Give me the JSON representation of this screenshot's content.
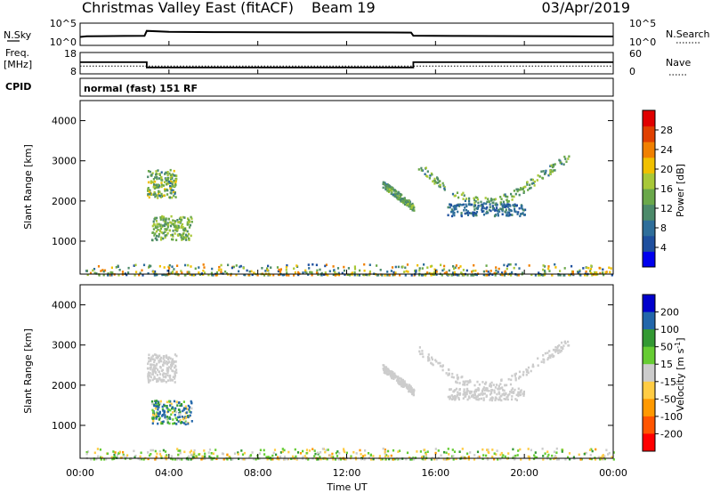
{
  "header": {
    "title": "Christmas Valley East (fitACF)",
    "beam": "Beam 19",
    "date": "03/Apr/2019"
  },
  "nsky_panel": {
    "left_label": "N.Sky",
    "left_ticks": [
      "10^5",
      "10^0"
    ],
    "right_label": "N.Search",
    "right_ticks": [
      "10^5",
      "10^0"
    ]
  },
  "freq_panel": {
    "left_label_1": "Freq.",
    "left_label_2": "[MHz]",
    "left_ticks": [
      "18",
      "8"
    ],
    "right_label": "Nave",
    "right_ticks": [
      "60",
      "0"
    ]
  },
  "cpid": {
    "label": "CPID",
    "text": "normal (fast) 151 RF"
  },
  "colors": {
    "power": [
      "#0000ee",
      "#1e4f9e",
      "#2e6e9a",
      "#4c8a6a",
      "#6aa84a",
      "#a8c838",
      "#f0c000",
      "#f08000",
      "#e04000",
      "#e00000"
    ],
    "velocity": [
      "#ff0000",
      "#ff5500",
      "#ff9900",
      "#ffcc44",
      "#cccccc",
      "#66cc33",
      "#339933",
      "#2266aa",
      "#0000cc"
    ]
  },
  "chart_data": [
    {
      "type": "line",
      "panel": "N.Sky / N.Search",
      "x_unit": "hours UT",
      "yscale": "log",
      "series": [
        {
          "x": [
            0.0,
            0.3,
            1.0,
            2.0,
            2.9,
            3.0,
            4.0,
            6.0,
            8.0,
            10.0,
            12.0,
            14.0,
            14.9,
            15.0,
            17.0,
            20.0,
            24.0
          ],
          "values": [
            60,
            90,
            100,
            110,
            120,
            2500,
            1500,
            1200,
            1100,
            1000,
            1000,
            950,
            900,
            130,
            110,
            100,
            80
          ]
        }
      ]
    },
    {
      "type": "line",
      "panel": "Freq. / Nave",
      "x_unit": "hours UT",
      "series": [
        {
          "x": [
            0,
            3,
            3,
            15,
            15,
            24
          ],
          "values": [
            13.5,
            13.5,
            10.8,
            10.8,
            13.5,
            13.5
          ]
        },
        {
          "x": [
            0,
            24
          ],
          "values": [
            11.5,
            11.5
          ]
        }
      ]
    },
    {
      "type": "scatter",
      "title": "",
      "xlabel": "Time UT",
      "ylabel": "Slant Range [km]",
      "xlim": [
        0,
        24
      ],
      "ylim": [
        180,
        4500
      ],
      "xticks": [
        "00:00",
        "04:00",
        "08:00",
        "12:00",
        "16:00",
        "20:00",
        "00:00"
      ],
      "yticks": [
        "1000",
        "2000",
        "3000",
        "4000"
      ],
      "colorbar": {
        "label": "Power [dB]",
        "ticks": [
          "4",
          "8",
          "12",
          "16",
          "20",
          "24",
          "28"
        ],
        "range": [
          0,
          30
        ]
      },
      "regions": [
        {
          "name": "patch-a",
          "x": [
            3.0,
            4.3
          ],
          "y": [
            2100,
            2800
          ],
          "value": [
            8,
            20
          ]
        },
        {
          "name": "patch-b",
          "x": [
            3.2,
            5.0
          ],
          "y": [
            1050,
            1650
          ],
          "value": [
            10,
            18
          ]
        },
        {
          "name": "arc-a",
          "x": [
            13.6,
            15.0
          ],
          "y": [
            1800,
            2450
          ],
          "value": [
            8,
            16
          ]
        },
        {
          "name": "arc-b",
          "x": [
            15.2,
            22.0
          ],
          "y": [
            2000,
            3100
          ],
          "value": [
            8,
            18
          ]
        },
        {
          "name": "arc-c",
          "x": [
            16.5,
            20.0
          ],
          "y": [
            1650,
            1950
          ],
          "value": [
            4,
            10
          ]
        },
        {
          "name": "near-range",
          "x": [
            0.2,
            24.0
          ],
          "y": [
            180,
            450
          ],
          "value": [
            4,
            24
          ]
        }
      ]
    },
    {
      "type": "scatter",
      "title": "",
      "xlabel": "Time UT",
      "ylabel": "Slant Range [km]",
      "xlim": [
        0,
        24
      ],
      "ylim": [
        180,
        4500
      ],
      "xticks": [
        "00:00",
        "04:00",
        "08:00",
        "12:00",
        "16:00",
        "20:00",
        "00:00"
      ],
      "yticks": [
        "1000",
        "2000",
        "3000",
        "4000"
      ],
      "colorbar": {
        "label": "Velocity [m s^-1]",
        "ticks": [
          "200",
          "100",
          "50",
          "15",
          "-15",
          "-50",
          "-100",
          "-200"
        ],
        "range": [
          -250,
          250
        ]
      },
      "regions": [
        {
          "name": "patch-a",
          "x": [
            3.0,
            4.3
          ],
          "y": [
            2100,
            2800
          ],
          "value": [
            -15,
            15
          ]
        },
        {
          "name": "patch-b",
          "x": [
            3.2,
            5.0
          ],
          "y": [
            1050,
            1650
          ],
          "value": [
            -50,
            200
          ]
        },
        {
          "name": "arc-a",
          "x": [
            13.6,
            15.0
          ],
          "y": [
            1800,
            2450
          ],
          "value": [
            -15,
            15
          ]
        },
        {
          "name": "arc-b",
          "x": [
            15.2,
            22.0
          ],
          "y": [
            2000,
            3100
          ],
          "value": [
            -15,
            15
          ]
        },
        {
          "name": "arc-c",
          "x": [
            16.5,
            20.0
          ],
          "y": [
            1650,
            1950
          ],
          "value": [
            -15,
            15
          ]
        },
        {
          "name": "near-range",
          "x": [
            0.2,
            24.0
          ],
          "y": [
            180,
            450
          ],
          "value": [
            -60,
            60
          ]
        }
      ]
    }
  ]
}
